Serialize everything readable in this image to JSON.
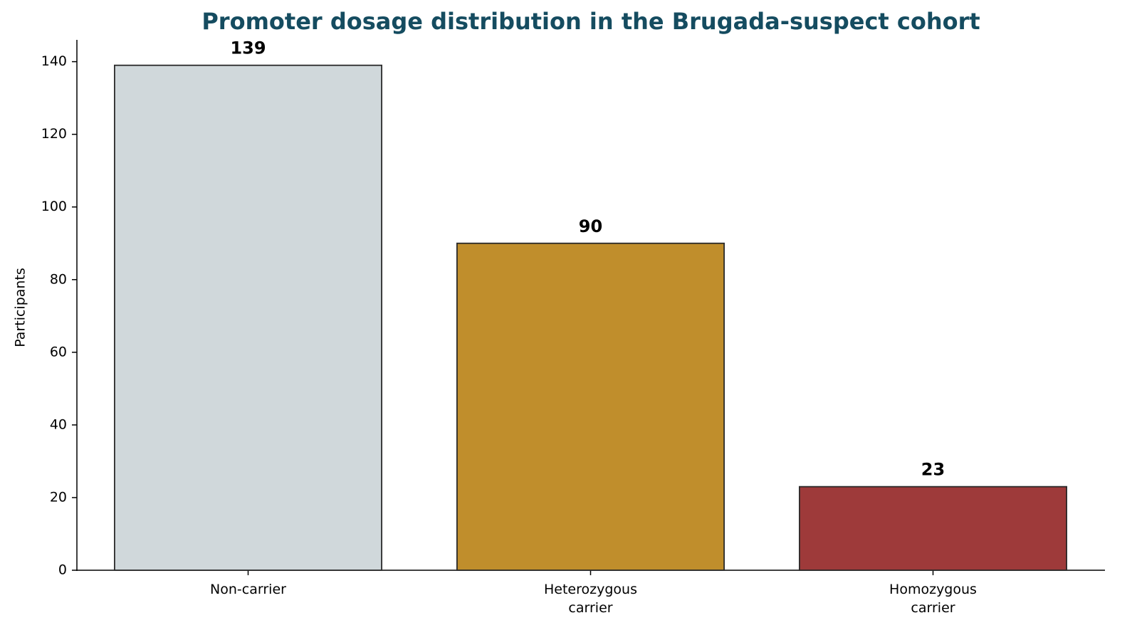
{
  "chart_data": {
    "type": "bar",
    "title": "Promoter dosage distribution in the Brugada-suspect cohort",
    "y_label": "Participants",
    "categories": [
      "Non-carrier",
      "Heterozygous\ncarrier",
      "Homozygous\ncarrier"
    ],
    "values": [
      139,
      90,
      23
    ],
    "colors": [
      "#d0d8db",
      "#c08e2c",
      "#9e3a3a"
    ],
    "ylim": [
      0,
      146
    ],
    "yticks": [
      0,
      20,
      40,
      60,
      80,
      100,
      120,
      140
    ],
    "grid": false
  }
}
